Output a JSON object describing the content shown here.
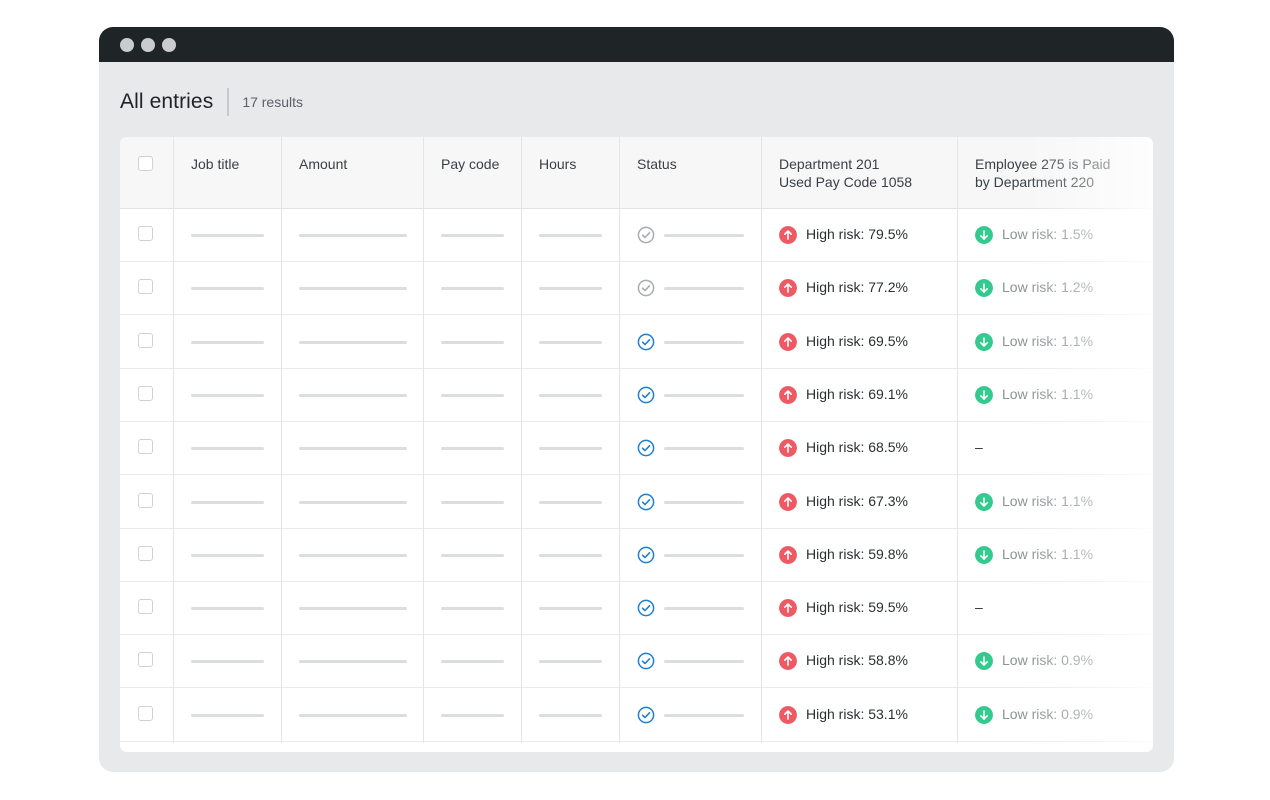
{
  "window": {
    "controls": [
      "close-dot",
      "minimize-dot",
      "maximize-dot"
    ]
  },
  "header": {
    "title": "All entries",
    "result_count": "17 results"
  },
  "table": {
    "columns": [
      {
        "key": "select",
        "label": ""
      },
      {
        "key": "job_title",
        "label": "Job title"
      },
      {
        "key": "amount",
        "label": "Amount"
      },
      {
        "key": "pay_code",
        "label": "Pay code"
      },
      {
        "key": "hours",
        "label": "Hours"
      },
      {
        "key": "status",
        "label": "Status"
      },
      {
        "key": "dept_201",
        "label": "Department 201 Used Pay Code 1058"
      },
      {
        "key": "emp_275",
        "label": "Employee 275 is Paid by Department 220"
      }
    ],
    "rows": [
      {
        "status": "pending",
        "high_risk": "High risk: 79.5%",
        "low_risk": "Low risk: 1.5%"
      },
      {
        "status": "pending",
        "high_risk": "High risk: 77.2%",
        "low_risk": "Low risk: 1.2%"
      },
      {
        "status": "approved",
        "high_risk": "High risk: 69.5%",
        "low_risk": "Low risk: 1.1%"
      },
      {
        "status": "approved",
        "high_risk": "High risk: 69.1%",
        "low_risk": "Low risk: 1.1%"
      },
      {
        "status": "approved",
        "high_risk": "High risk: 68.5%",
        "low_risk": "–"
      },
      {
        "status": "approved",
        "high_risk": "High risk: 67.3%",
        "low_risk": "Low risk: 1.1%"
      },
      {
        "status": "approved",
        "high_risk": "High risk: 59.8%",
        "low_risk": "Low risk: 1.1%"
      },
      {
        "status": "approved",
        "high_risk": "High risk: 59.5%",
        "low_risk": "–"
      },
      {
        "status": "approved",
        "high_risk": "High risk: 58.8%",
        "low_risk": "Low risk: 0.9%"
      },
      {
        "status": "approved",
        "high_risk": "High risk: 53.1%",
        "low_risk": "Low risk: 0.9%"
      }
    ]
  },
  "colors": {
    "high_risk": "#ee5a63",
    "low_risk": "#33c98f",
    "status_approved": "#1e7fd0",
    "status_pending": "#a8abaf"
  },
  "icons": {
    "high_risk": "arrow-up-circle-icon",
    "low_risk": "arrow-down-circle-icon",
    "status_approved": "check-circle-icon",
    "status_pending": "check-circle-outline-icon"
  }
}
